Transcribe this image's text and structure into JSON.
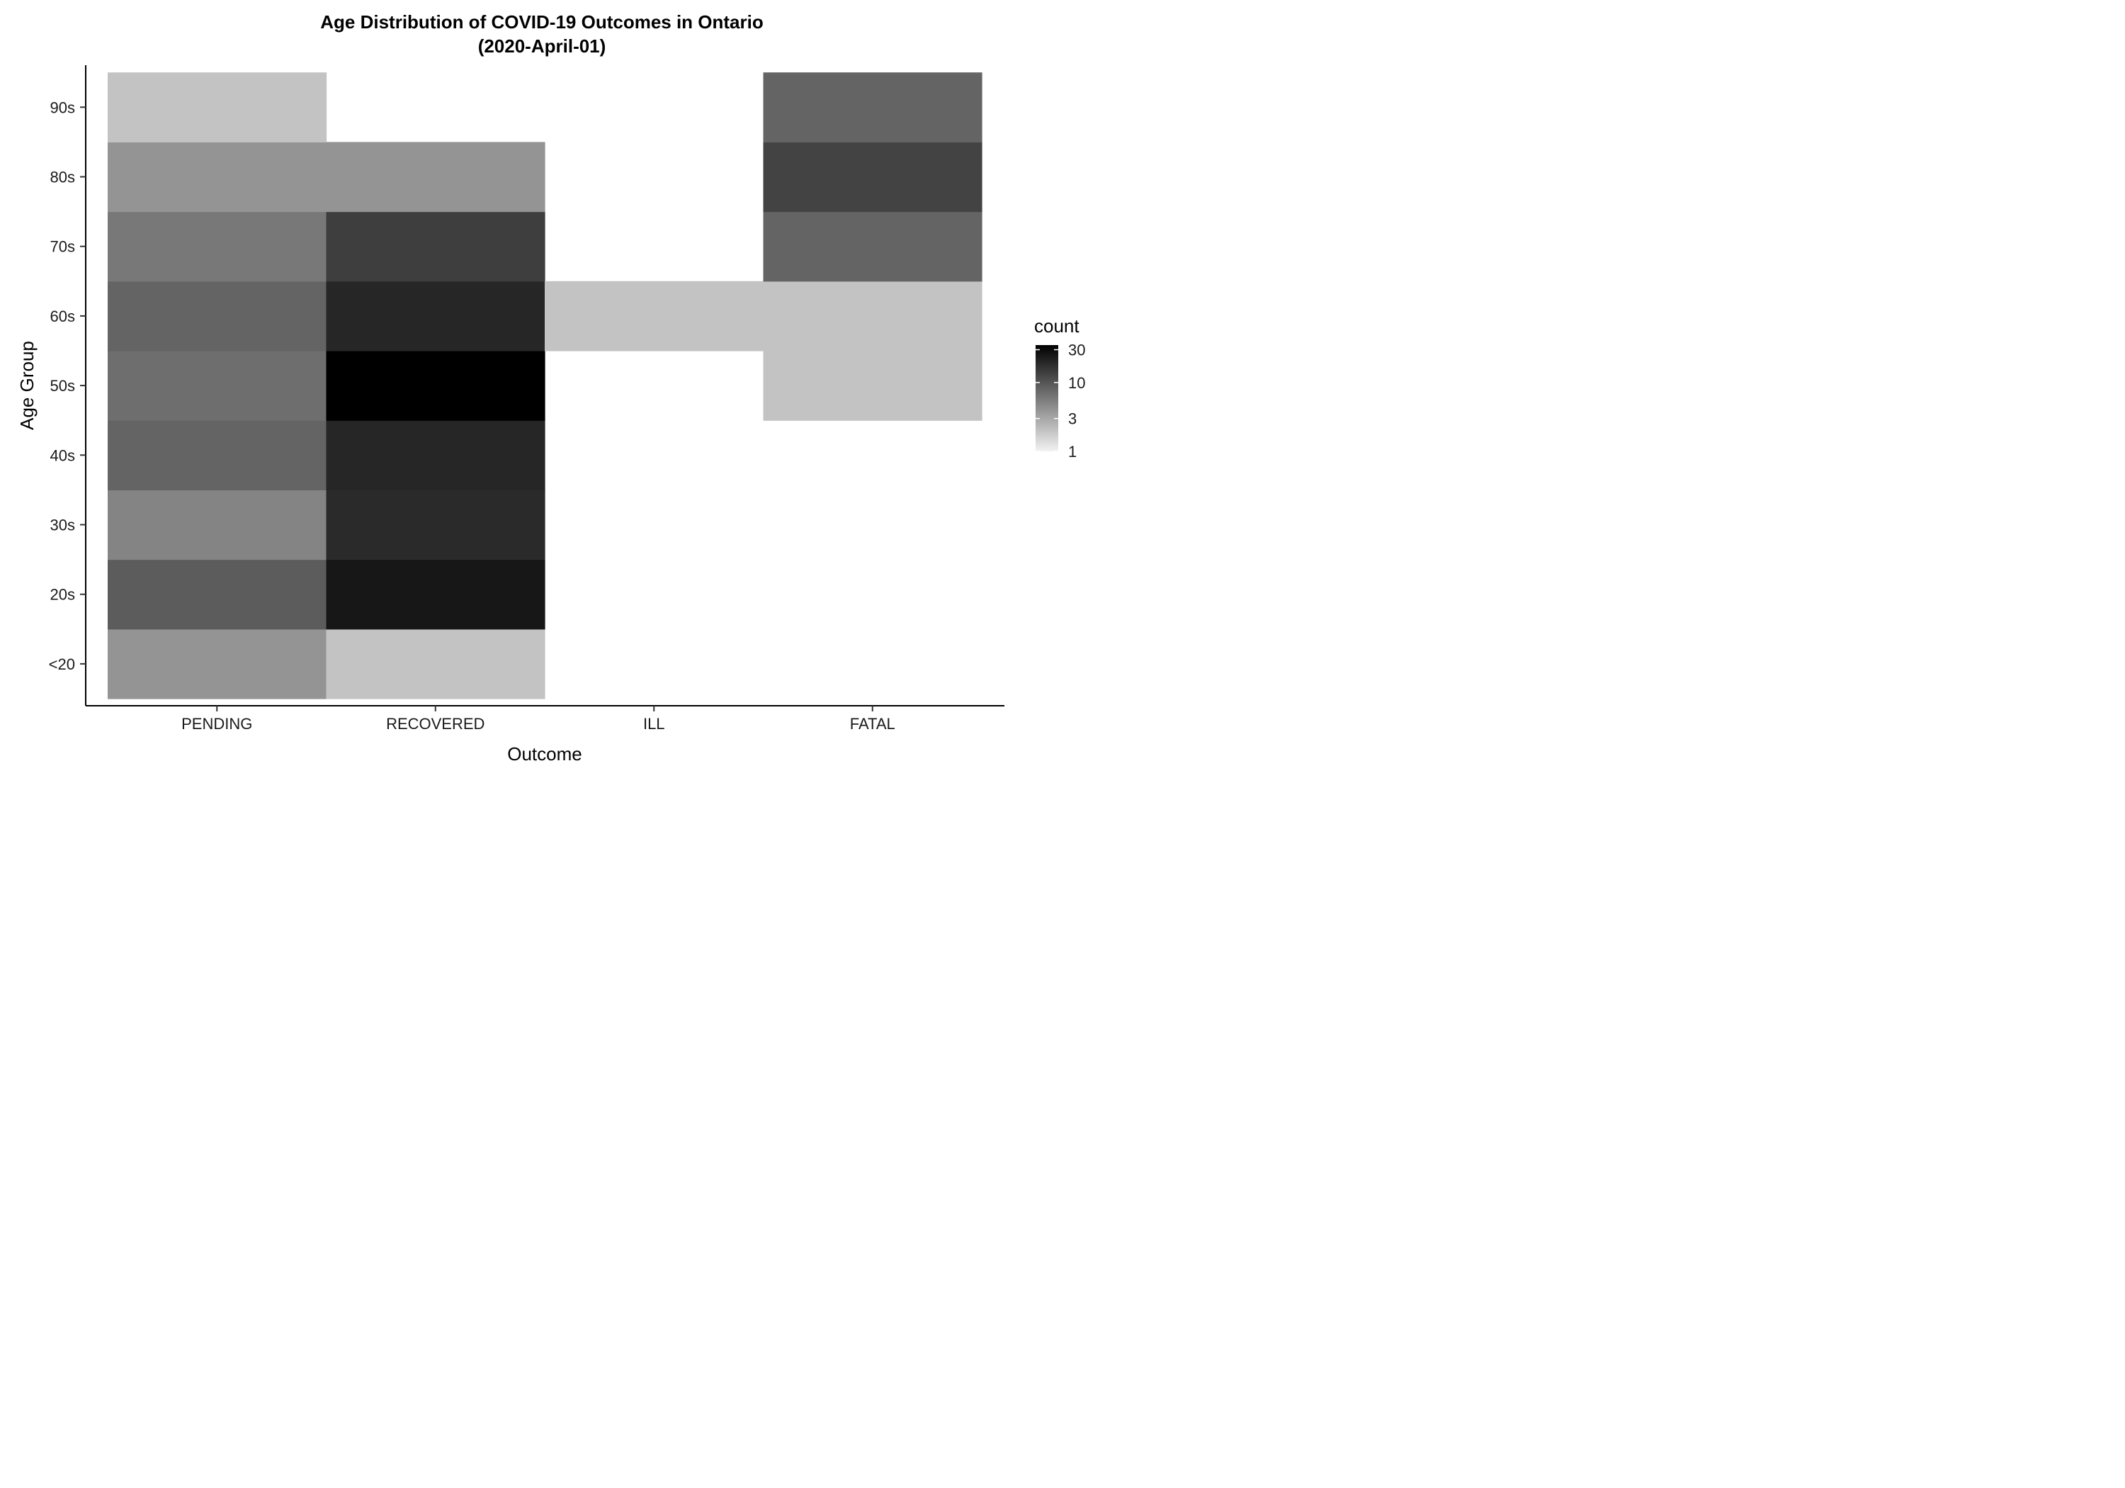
{
  "chart_data": {
    "type": "heatmap",
    "title": "Age Distribution of COVID-19 Outcomes in Ontario",
    "subtitle": "(2020-April-01)",
    "xlabel": "Outcome",
    "ylabel": "Age Group",
    "x_categories": [
      "PENDING",
      "RECOVERED",
      "ILL",
      "FATAL"
    ],
    "y_categories": [
      "<20",
      "20s",
      "30s",
      "40s",
      "50s",
      "60s",
      "70s",
      "80s",
      "90s"
    ],
    "cells": [
      {
        "x": "PENDING",
        "y": "<20",
        "value": 4
      },
      {
        "x": "PENDING",
        "y": "20s",
        "value": 9
      },
      {
        "x": "PENDING",
        "y": "30s",
        "value": 5
      },
      {
        "x": "PENDING",
        "y": "40s",
        "value": 8
      },
      {
        "x": "PENDING",
        "y": "50s",
        "value": 7
      },
      {
        "x": "PENDING",
        "y": "60s",
        "value": 8
      },
      {
        "x": "PENDING",
        "y": "70s",
        "value": 6
      },
      {
        "x": "PENDING",
        "y": "80s",
        "value": 4
      },
      {
        "x": "PENDING",
        "y": "90s",
        "value": 2
      },
      {
        "x": "RECOVERED",
        "y": "<20",
        "value": 2
      },
      {
        "x": "RECOVERED",
        "y": "20s",
        "value": 25
      },
      {
        "x": "RECOVERED",
        "y": "30s",
        "value": 19
      },
      {
        "x": "RECOVERED",
        "y": "40s",
        "value": 20
      },
      {
        "x": "RECOVERED",
        "y": "50s",
        "value": 35
      },
      {
        "x": "RECOVERED",
        "y": "60s",
        "value": 20
      },
      {
        "x": "RECOVERED",
        "y": "70s",
        "value": 14
      },
      {
        "x": "RECOVERED",
        "y": "80s",
        "value": 4
      },
      {
        "x": "ILL",
        "y": "60s",
        "value": 2
      },
      {
        "x": "FATAL",
        "y": "50s",
        "value": 2
      },
      {
        "x": "FATAL",
        "y": "60s",
        "value": 2
      },
      {
        "x": "FATAL",
        "y": "70s",
        "value": 8
      },
      {
        "x": "FATAL",
        "y": "80s",
        "value": 13
      },
      {
        "x": "FATAL",
        "y": "90s",
        "value": 8
      }
    ],
    "legend": {
      "title": "count",
      "scale": "log",
      "min": 1,
      "max": 35,
      "breaks": [
        1,
        3,
        10,
        30
      ],
      "low_color": "#f2f2f2",
      "high_color": "#000000"
    },
    "grid": false
  }
}
